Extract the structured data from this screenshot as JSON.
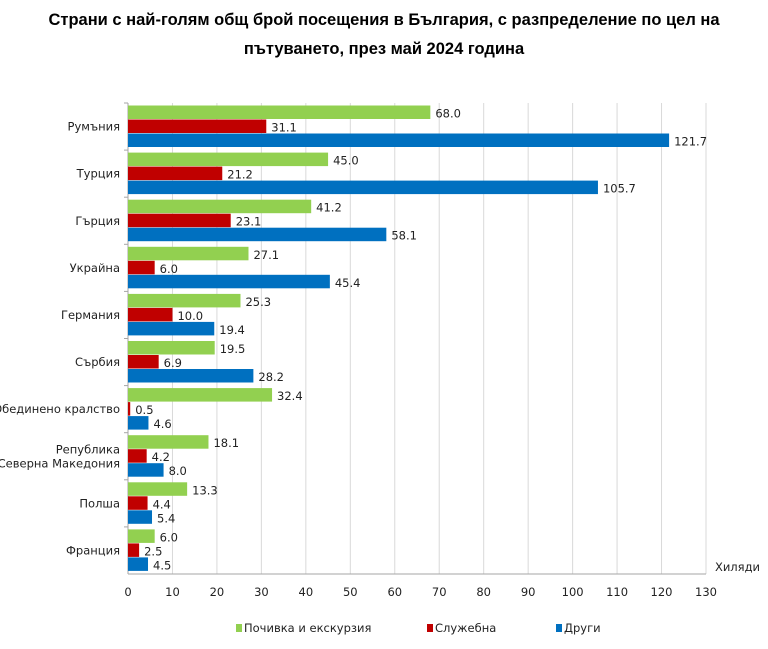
{
  "chart_data": {
    "type": "bar",
    "orientation": "horizontal",
    "title": "Страни с най-голям общ брой посещения в България, с разпределение по цел на пътуването, през май 2024 година",
    "xlabel": "Хиляди",
    "xlim": [
      0,
      130
    ],
    "xticks": [
      0,
      10,
      20,
      30,
      40,
      50,
      60,
      70,
      80,
      90,
      100,
      110,
      120,
      130
    ],
    "grid": true,
    "legend_position": "bottom",
    "categories": [
      "Румъния",
      "Турция",
      "Гърция",
      "Украйна",
      "Германия",
      "Сърбия",
      "Обединено кралство",
      "Република Северна Македония",
      "Полша",
      "Франция"
    ],
    "category_lines": [
      [
        "Румъния"
      ],
      [
        "Турция"
      ],
      [
        "Гърция"
      ],
      [
        "Украйна"
      ],
      [
        "Германия"
      ],
      [
        "Сърбия"
      ],
      [
        "Обединено кралство"
      ],
      [
        "Република",
        "Северна Македония"
      ],
      [
        "Полша"
      ],
      [
        "Франция"
      ]
    ],
    "series": [
      {
        "name": "Почивка и екскурзия",
        "color": "#92d050",
        "values": [
          68.0,
          45.0,
          41.2,
          27.1,
          25.3,
          19.5,
          32.4,
          18.1,
          13.3,
          6.0
        ]
      },
      {
        "name": "Служебна",
        "color": "#c00000",
        "values": [
          31.1,
          21.2,
          23.1,
          6.0,
          10.0,
          6.9,
          0.5,
          4.2,
          4.4,
          2.5
        ]
      },
      {
        "name": "Други",
        "color": "#0070c0",
        "values": [
          121.7,
          105.7,
          58.1,
          45.4,
          19.4,
          28.2,
          4.6,
          8.0,
          5.4,
          4.5
        ]
      }
    ]
  }
}
